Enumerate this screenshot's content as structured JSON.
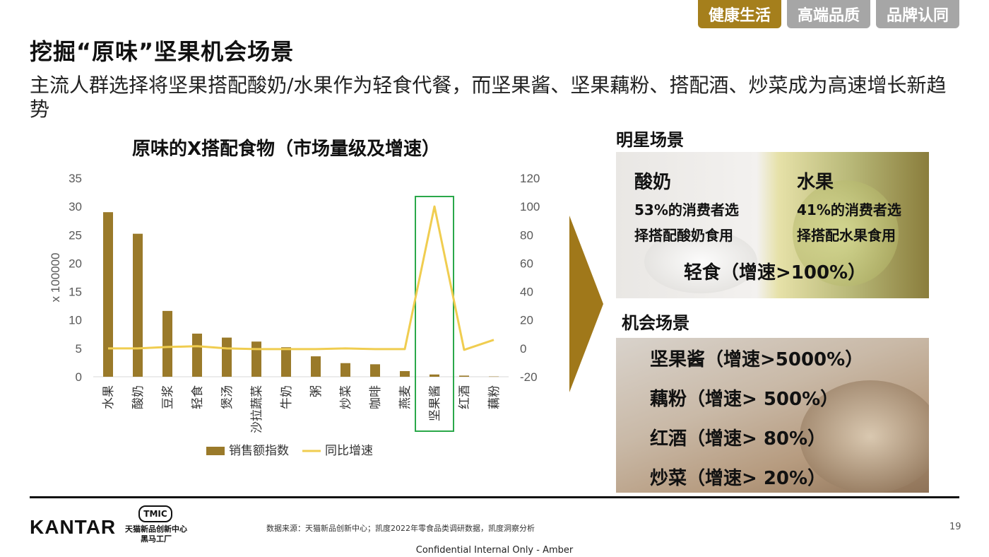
{
  "tabs": [
    {
      "label": "健康生活",
      "active": true
    },
    {
      "label": "高端品质",
      "active": false
    },
    {
      "label": "品牌认同",
      "active": false
    }
  ],
  "title": "挖掘“原味”坚果机会场景",
  "subtitle": "主流人群选择将坚果搭配酸奶/水果作为轻食代餐，而坚果酱、坚果藕粉、搭配酒、炒菜成为高速增长新趋势",
  "chart_data": {
    "type": "bar+line",
    "title": "原味的X搭配食物（市场量级及增速）",
    "categories": [
      "水果",
      "酸奶",
      "豆浆",
      "轻食",
      "煲汤",
      "沙拉蔬菜",
      "牛奶",
      "粥",
      "炒菜",
      "咖啡",
      "燕麦",
      "坚果酱",
      "红酒",
      "藕粉"
    ],
    "series": [
      {
        "name": "销售额指数",
        "type": "bar",
        "axis": "left",
        "color": "#9a7a2a",
        "values": [
          29,
          25.2,
          11.6,
          7.6,
          6.9,
          6.2,
          5.2,
          3.6,
          2.4,
          2.2,
          1.0,
          0.4,
          0.2,
          0.05
        ]
      },
      {
        "name": "同比增速",
        "type": "line",
        "axis": "right",
        "color": "#f0cd50",
        "values": [
          0,
          0,
          1,
          1.5,
          0,
          -0.5,
          -0.5,
          -0.5,
          0,
          -0.5,
          -0.5,
          100,
          -1,
          6
        ]
      }
    ],
    "ylabel": "x 100000",
    "ylim": [
      0,
      35
    ],
    "yticks": [
      "35",
      "30",
      "25",
      "20",
      "15",
      "10",
      "5",
      "0"
    ],
    "y2lim": [
      -20,
      120
    ],
    "y2ticks": [
      "120",
      "100",
      "80",
      "60",
      "40",
      "20",
      "0",
      "-20"
    ],
    "highlight_category": "坚果酱",
    "highlight_color": "#2aa84a",
    "legend_position": "bottom",
    "grid": false
  },
  "star": {
    "heading": "明星场景",
    "yogurt": {
      "label": "酸奶",
      "line1": "53%的消费者选",
      "line2": "择搭配酸奶食用"
    },
    "fruit": {
      "label": "水果",
      "line1": "41%的消费者选",
      "line2": "择搭配水果食用"
    },
    "summary": "轻食（增速>100%）"
  },
  "opportunity": {
    "heading": "机会场景",
    "items": [
      "坚果酱（增速>5000%）",
      "藕粉（增速> 500%）",
      "红酒（增速> 80%）",
      "炒菜（增速> 20%）"
    ]
  },
  "colors": {
    "gold": "#a57f1c",
    "grey_tab": "#a6a6a6",
    "arrow": "#a0781a"
  },
  "footer": {
    "brand": "KANTAR",
    "tmic_logo": "TMIC",
    "tmic_line1": "天猫新品创新中心",
    "tmic_line2": "黑马工厂",
    "source": "数据来源：天猫新品创新中心；凯度2022年零食品类调研数据，凯度洞察分析",
    "page": "19",
    "confidential": "Confidential Internal Only - Amber"
  }
}
